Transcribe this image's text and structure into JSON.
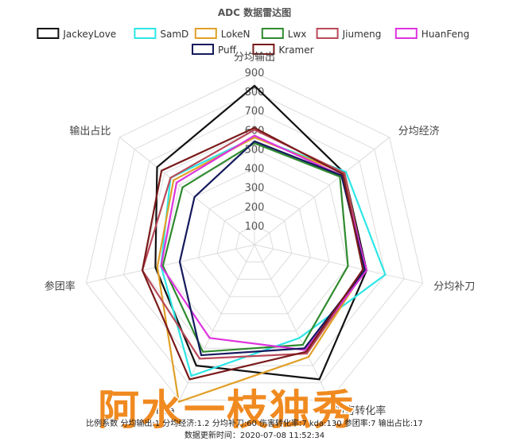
{
  "chart_data": {
    "type": "radar",
    "title": "ADC 数据雷达图",
    "axes": [
      "分均输出",
      "分均经济",
      "分均补刀",
      "伤害转化率",
      "kda",
      "参团率",
      "输出占比"
    ],
    "ticks": [
      100,
      200,
      300,
      400,
      500,
      600,
      700,
      800,
      900
    ],
    "rmax": 900,
    "series": [
      {
        "name": "JackeyLove",
        "color": "#111111",
        "values": [
          830,
          600,
          600,
          780,
          700,
          530,
          650
        ]
      },
      {
        "name": "SamD",
        "color": "#2ee6e6",
        "values": [
          560,
          610,
          700,
          540,
          760,
          500,
          560
        ]
      },
      {
        "name": "LokeN",
        "color": "#e0a028",
        "values": [
          560,
          600,
          590,
          650,
          910,
          520,
          540
        ]
      },
      {
        "name": "Lwx",
        "color": "#2f8a2f",
        "values": [
          530,
          570,
          500,
          580,
          620,
          490,
          480
        ]
      },
      {
        "name": "Jiumeng",
        "color": "#b84a5a",
        "values": [
          600,
          600,
          590,
          630,
          660,
          600,
          560
        ]
      },
      {
        "name": "HuanFeng",
        "color": "#dd33dd",
        "values": [
          570,
          580,
          600,
          610,
          540,
          500,
          520
        ]
      },
      {
        "name": "Puff",
        "color": "#141a5c",
        "values": [
          540,
          580,
          590,
          600,
          640,
          400,
          400
        ]
      },
      {
        "name": "Kramer",
        "color": "#7a1a1a",
        "values": [
          610,
          590,
          580,
          620,
          780,
          600,
          620
        ]
      }
    ],
    "legend_position": "top"
  },
  "footer": {
    "line1": "比例系数 分均输出:1 分均经济:1.2 分均补刀:60 伤害转化率:7 kda:130 参团率:7 输出占比:17",
    "line2": "数据更新时间：2020-07-08 11:52:34"
  },
  "watermark": "阿水一枝独秀"
}
